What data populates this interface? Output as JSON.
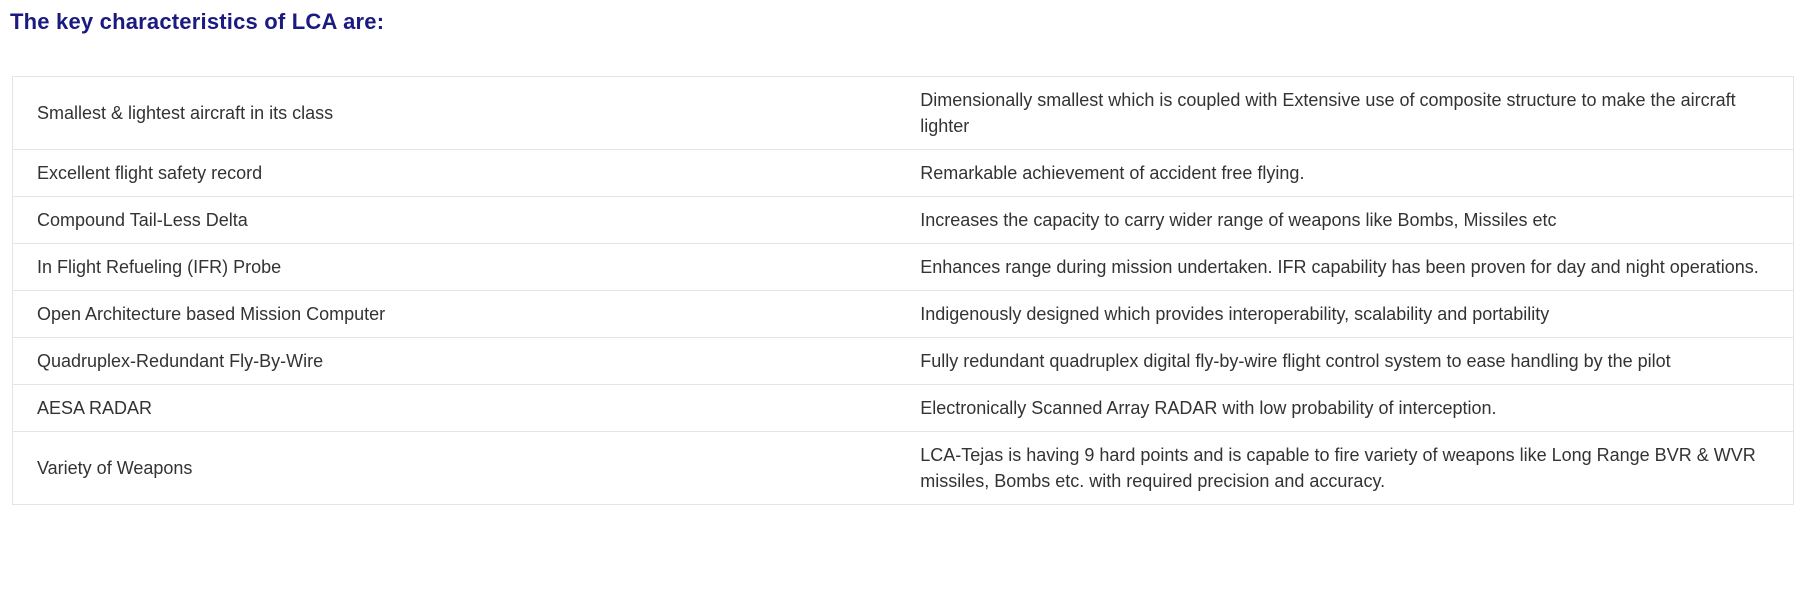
{
  "page": {
    "title": "The key characteristics of LCA are:"
  },
  "colors": {
    "heading_text": "#1a1a80",
    "body_text": "#333333",
    "table_border": "#e4e4e4",
    "background": "#ffffff"
  },
  "table": {
    "columns": [
      "feature",
      "description"
    ],
    "rows": [
      {
        "feature": "Smallest & lightest aircraft in its class",
        "description": "Dimensionally smallest which is coupled with Extensive use of composite structure to make the aircraft lighter"
      },
      {
        "feature": "Excellent flight safety record",
        "description": "Remarkable achievement of accident free flying."
      },
      {
        "feature": "Compound Tail-Less Delta",
        "description": "Increases the capacity to carry wider range of weapons like Bombs, Missiles etc"
      },
      {
        "feature": "In Flight Refueling (IFR) Probe",
        "description": "Enhances range during mission undertaken. IFR capability has been proven for day and night operations."
      },
      {
        "feature": "Open Architecture based Mission Computer",
        "description": "Indigenously designed which provides interoperability, scalability and portability"
      },
      {
        "feature": "Quadruplex-Redundant Fly-By-Wire",
        "description": "Fully redundant quadruplex digital fly-by-wire flight control system to ease handling by the pilot"
      },
      {
        "feature": "AESA RADAR",
        "description": "Electronically Scanned Array RADAR with low probability of interception."
      },
      {
        "feature": "Variety of Weapons",
        "description": "LCA-Tejas is having 9 hard points and is capable to fire variety of weapons like Long Range BVR & WVR missiles, Bombs etc. with required precision and accuracy."
      }
    ]
  }
}
